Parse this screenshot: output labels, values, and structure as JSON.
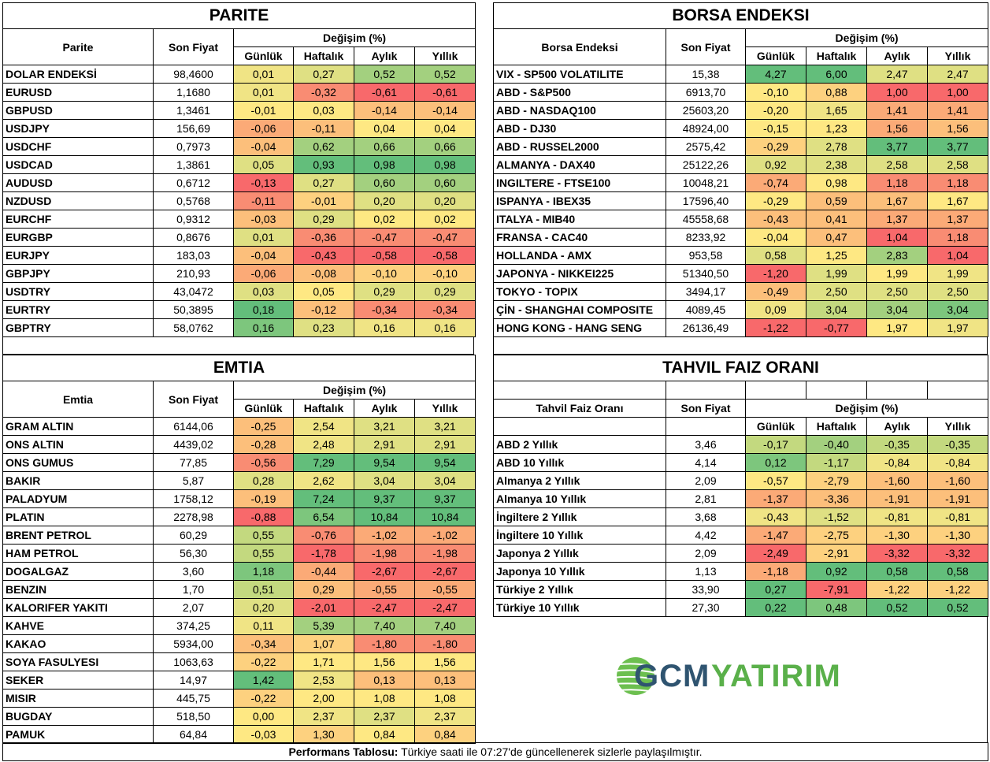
{
  "palette": {
    "G1": "#63be7b",
    "G2": "#7dc67d",
    "G3": "#a3d07f",
    "G4": "#c3d97f",
    "Y1": "#dfe083",
    "Y2": "#f0e485",
    "Y3": "#fee883",
    "O1": "#fdd17f",
    "O2": "#fcbf7b",
    "O3": "#fbaa77",
    "R1": "#f98c73",
    "R2": "#f8696b"
  },
  "columns": {
    "daily": "Günlük",
    "weekly": "Haftalık",
    "monthly": "Aylık",
    "yearly": "Yıllık",
    "change": "Değişim (%)",
    "price": "Son Fiyat"
  },
  "parite": {
    "title": "PARITE",
    "name_header": "Parite",
    "rows": [
      {
        "name": "DOLAR ENDEKSİ",
        "price": "98,4600",
        "v": [
          "0,01",
          "0,27",
          "0,52",
          "0,52"
        ],
        "c": [
          "Y2",
          "Y1",
          "G3",
          "G3"
        ]
      },
      {
        "name": "EURUSD",
        "price": "1,1680",
        "v": [
          "0,01",
          "-0,32",
          "-0,61",
          "-0,61"
        ],
        "c": [
          "Y2",
          "R1",
          "R2",
          "R2"
        ]
      },
      {
        "name": "GBPUSD",
        "price": "1,3461",
        "v": [
          "-0,01",
          "0,03",
          "-0,14",
          "-0,14"
        ],
        "c": [
          "Y3",
          "Y3",
          "O2",
          "O2"
        ]
      },
      {
        "name": "USDJPY",
        "price": "156,69",
        "v": [
          "-0,06",
          "-0,11",
          "0,04",
          "0,04"
        ],
        "c": [
          "O3",
          "O2",
          "Y3",
          "Y3"
        ]
      },
      {
        "name": "USDCHF",
        "price": "0,7973",
        "v": [
          "-0,04",
          "0,62",
          "0,66",
          "0,66"
        ],
        "c": [
          "O2",
          "G3",
          "G3",
          "G3"
        ]
      },
      {
        "name": "USDCAD",
        "price": "1,3861",
        "v": [
          "0,05",
          "0,93",
          "0,98",
          "0,98"
        ],
        "c": [
          "Y1",
          "G1",
          "G1",
          "G1"
        ]
      },
      {
        "name": "AUDUSD",
        "price": "0,6712",
        "v": [
          "-0,13",
          "0,27",
          "0,60",
          "0,60"
        ],
        "c": [
          "R2",
          "Y1",
          "G3",
          "G3"
        ]
      },
      {
        "name": "NZDUSD",
        "price": "0,5768",
        "v": [
          "-0,11",
          "-0,01",
          "0,20",
          "0,20"
        ],
        "c": [
          "R1",
          "O1",
          "Y1",
          "Y1"
        ]
      },
      {
        "name": "EURCHF",
        "price": "0,9312",
        "v": [
          "-0,03",
          "0,29",
          "0,02",
          "0,02"
        ],
        "c": [
          "O2",
          "Y1",
          "Y3",
          "Y3"
        ]
      },
      {
        "name": "EURGBP",
        "price": "0,8676",
        "v": [
          "0,01",
          "-0,36",
          "-0,47",
          "-0,47"
        ],
        "c": [
          "Y1",
          "R1",
          "R1",
          "R1"
        ]
      },
      {
        "name": "EURJPY",
        "price": "183,03",
        "v": [
          "-0,04",
          "-0,43",
          "-0,58",
          "-0,58"
        ],
        "c": [
          "O2",
          "R2",
          "R2",
          "R2"
        ]
      },
      {
        "name": "GBPJPY",
        "price": "210,93",
        "v": [
          "-0,06",
          "-0,08",
          "-0,10",
          "-0,10"
        ],
        "c": [
          "O3",
          "O2",
          "O1",
          "O1"
        ]
      },
      {
        "name": "USDTRY",
        "price": "43,0472",
        "v": [
          "0,03",
          "0,05",
          "0,29",
          "0,29"
        ],
        "c": [
          "Y1",
          "Y3",
          "Y1",
          "Y1"
        ]
      },
      {
        "name": "EURTRY",
        "price": "50,3895",
        "v": [
          "0,18",
          "-0,12",
          "-0,34",
          "-0,34"
        ],
        "c": [
          "G1",
          "O2",
          "R1",
          "R1"
        ]
      },
      {
        "name": "GBPTRY",
        "price": "58,0762",
        "v": [
          "0,16",
          "0,23",
          "0,16",
          "0,16"
        ],
        "c": [
          "G2",
          "Y1",
          "Y2",
          "Y2"
        ]
      }
    ]
  },
  "borsa": {
    "title": "BORSA ENDEKSI",
    "name_header": "Borsa Endeksi",
    "rows": [
      {
        "name": "VIX  - SP500 VOLATILITE",
        "price": "15,38",
        "v": [
          "4,27",
          "6,00",
          "2,47",
          "2,47"
        ],
        "c": [
          "G1",
          "G1",
          "Y1",
          "Y1"
        ]
      },
      {
        "name": "ABD - S&P500",
        "price": "6913,70",
        "v": [
          "-0,10",
          "0,88",
          "1,00",
          "1,00"
        ],
        "c": [
          "Y3",
          "O1",
          "R2",
          "R2"
        ]
      },
      {
        "name": "ABD - NASDAQ100",
        "price": "25603,20",
        "v": [
          "-0,20",
          "1,65",
          "1,41",
          "1,41"
        ],
        "c": [
          "Y3",
          "Y2",
          "O3",
          "O3"
        ]
      },
      {
        "name": "ABD - DJ30",
        "price": "48924,00",
        "v": [
          "-0,15",
          "1,23",
          "1,56",
          "1,56"
        ],
        "c": [
          "Y3",
          "Y3",
          "O3",
          "O2"
        ]
      },
      {
        "name": "ABD - RUSSEL2000",
        "price": "2575,42",
        "v": [
          "-0,29",
          "2,78",
          "3,77",
          "3,77"
        ],
        "c": [
          "O1",
          "Y1",
          "G1",
          "G1"
        ]
      },
      {
        "name": "ALMANYA - DAX40",
        "price": "25122,26",
        "v": [
          "0,92",
          "2,38",
          "2,58",
          "2,58"
        ],
        "c": [
          "Y1",
          "Y1",
          "Y1",
          "Y1"
        ]
      },
      {
        "name": "INGILTERE - FTSE100",
        "price": "10048,21",
        "v": [
          "-0,74",
          "0,98",
          "1,18",
          "1,18"
        ],
        "c": [
          "O3",
          "Y3",
          "R1",
          "R1"
        ]
      },
      {
        "name": "ISPANYA - IBEX35",
        "price": "17596,40",
        "v": [
          "-0,29",
          "0,59",
          "1,67",
          "1,67"
        ],
        "c": [
          "Y3",
          "O2",
          "O2",
          "Y3"
        ]
      },
      {
        "name": "ITALYA - MIB40",
        "price": "45558,68",
        "v": [
          "-0,43",
          "0,41",
          "1,37",
          "1,37"
        ],
        "c": [
          "O2",
          "O2",
          "O3",
          "O3"
        ]
      },
      {
        "name": "FRANSA - CAC40",
        "price": "8233,92",
        "v": [
          "-0,04",
          "0,47",
          "1,04",
          "1,18"
        ],
        "c": [
          "Y3",
          "O2",
          "R2",
          "R1"
        ]
      },
      {
        "name": "HOLLANDA - AMX",
        "price": "953,58",
        "v": [
          "0,58",
          "1,25",
          "2,83",
          "1,04"
        ],
        "c": [
          "Y1",
          "Y3",
          "G3",
          "R2"
        ]
      },
      {
        "name": "JAPONYA - NIKKEI225",
        "price": "51340,50",
        "v": [
          "-1,20",
          "1,99",
          "1,99",
          "1,99"
        ],
        "c": [
          "R2",
          "Y1",
          "Y3",
          "Y2"
        ]
      },
      {
        "name": "TOKYO - TOPIX",
        "price": "3494,17",
        "v": [
          "-0,49",
          "2,50",
          "2,50",
          "2,50"
        ],
        "c": [
          "O2",
          "Y1",
          "Y1",
          "Y1"
        ]
      },
      {
        "name": "ÇİN - SHANGHAI COMPOSITE",
        "price": "4089,45",
        "v": [
          "0,09",
          "3,04",
          "3,04",
          "3,04"
        ],
        "c": [
          "Y2",
          "G4",
          "G3",
          "G2"
        ]
      },
      {
        "name": "HONG KONG - HANG SENG",
        "price": "26136,49",
        "v": [
          "-1,22",
          "-0,77",
          "1,97",
          "1,97"
        ],
        "c": [
          "R2",
          "R2",
          "Y3",
          "Y2"
        ]
      }
    ]
  },
  "emtia": {
    "title": "EMTIA",
    "name_header": "Emtia",
    "rows": [
      {
        "name": "GRAM ALTIN",
        "price": "6144,06",
        "v": [
          "-0,25",
          "2,54",
          "3,21",
          "3,21"
        ],
        "c": [
          "O2",
          "Y2",
          "Y1",
          "Y1"
        ]
      },
      {
        "name": "ONS ALTIN",
        "price": "4439,02",
        "v": [
          "-0,28",
          "2,48",
          "2,91",
          "2,91"
        ],
        "c": [
          "O2",
          "Y2",
          "Y1",
          "Y1"
        ]
      },
      {
        "name": "ONS GUMUS",
        "price": "77,85",
        "v": [
          "-0,56",
          "7,29",
          "9,54",
          "9,54"
        ],
        "c": [
          "R1",
          "G1",
          "G1",
          "G1"
        ]
      },
      {
        "name": "BAKIR",
        "price": "5,87",
        "v": [
          "0,28",
          "2,62",
          "3,04",
          "3,04"
        ],
        "c": [
          "Y1",
          "Y2",
          "Y1",
          "Y1"
        ]
      },
      {
        "name": "PALADYUM",
        "price": "1758,12",
        "v": [
          "-0,19",
          "7,24",
          "9,37",
          "9,37"
        ],
        "c": [
          "O2",
          "G1",
          "G1",
          "G1"
        ]
      },
      {
        "name": "PLATIN",
        "price": "2278,98",
        "v": [
          "-0,88",
          "6,54",
          "10,84",
          "10,84"
        ],
        "c": [
          "R2",
          "G2",
          "G1",
          "G1"
        ]
      },
      {
        "name": "BRENT PETROL",
        "price": "60,29",
        "v": [
          "0,55",
          "-0,76",
          "-1,02",
          "-1,02"
        ],
        "c": [
          "G4",
          "R1",
          "O3",
          "O3"
        ]
      },
      {
        "name": "HAM PETROL",
        "price": "56,30",
        "v": [
          "0,55",
          "-1,78",
          "-1,98",
          "-1,98"
        ],
        "c": [
          "G4",
          "R2",
          "R1",
          "R1"
        ]
      },
      {
        "name": "DOGALGAZ",
        "price": "3,60",
        "v": [
          "1,18",
          "-0,44",
          "-2,67",
          "-2,67"
        ],
        "c": [
          "G2",
          "O3",
          "R2",
          "R2"
        ]
      },
      {
        "name": "BENZIN",
        "price": "1,70",
        "v": [
          "0,51",
          "0,29",
          "-0,55",
          "-0,55"
        ],
        "c": [
          "G4",
          "O2",
          "O3",
          "O3"
        ]
      },
      {
        "name": "KALORIFER YAKITI",
        "price": "2,07",
        "v": [
          "0,20",
          "-2,01",
          "-2,47",
          "-2,47"
        ],
        "c": [
          "Y1",
          "R2",
          "R2",
          "R2"
        ]
      },
      {
        "name": "KAHVE",
        "price": "374,25",
        "v": [
          "0,11",
          "5,39",
          "7,40",
          "7,40"
        ],
        "c": [
          "Y2",
          "G3",
          "G3",
          "G3"
        ]
      },
      {
        "name": "KAKAO",
        "price": "5934,00",
        "v": [
          "-0,34",
          "1,07",
          "-1,80",
          "-1,80"
        ],
        "c": [
          "O2",
          "O1",
          "R1",
          "R1"
        ]
      },
      {
        "name": "SOYA FASULYESI",
        "price": "1063,63",
        "v": [
          "-0,22",
          "1,71",
          "1,56",
          "1,56"
        ],
        "c": [
          "O1",
          "Y3",
          "Y3",
          "Y3"
        ]
      },
      {
        "name": "SEKER",
        "price": "14,97",
        "v": [
          "1,42",
          "2,53",
          "0,13",
          "0,13"
        ],
        "c": [
          "G1",
          "Y2",
          "O2",
          "O2"
        ]
      },
      {
        "name": "MISIR",
        "price": "445,75",
        "v": [
          "-0,22",
          "2,00",
          "1,08",
          "1,08"
        ],
        "c": [
          "O1",
          "Y3",
          "Y3",
          "Y3"
        ]
      },
      {
        "name": "BUGDAY",
        "price": "518,50",
        "v": [
          "0,00",
          "2,37",
          "2,37",
          "2,37"
        ],
        "c": [
          "Y3",
          "Y2",
          "Y1",
          "Y2"
        ]
      },
      {
        "name": "PAMUK",
        "price": "64,84",
        "v": [
          "-0,03",
          "1,30",
          "0,84",
          "0,84"
        ],
        "c": [
          "Y3",
          "O1",
          "Y3",
          "O1"
        ]
      }
    ]
  },
  "tahvil": {
    "title": "TAHVIL FAIZ ORANI",
    "name_header": "Tahvil Faiz Oranı",
    "rows": [
      {
        "name": "ABD 2 Yıllık",
        "price": "3,46",
        "v": [
          "-0,17",
          "-0,40",
          "-0,35",
          "-0,35"
        ],
        "c": [
          "G4",
          "G3",
          "G4",
          "G4"
        ]
      },
      {
        "name": "ABD 10 Yıllık",
        "price": "4,14",
        "v": [
          "0,12",
          "-1,17",
          "-0,84",
          "-0,84"
        ],
        "c": [
          "G2",
          "G4",
          "Y2",
          "Y2"
        ]
      },
      {
        "name": "Almanya 2 Yıllık",
        "price": "2,09",
        "v": [
          "-0,57",
          "-2,79",
          "-1,60",
          "-1,60"
        ],
        "c": [
          "Y3",
          "O1",
          "O2",
          "O2"
        ]
      },
      {
        "name": "Almanya 10 Yıllık",
        "price": "2,81",
        "v": [
          "-1,37",
          "-3,36",
          "-1,91",
          "-1,91"
        ],
        "c": [
          "O3",
          "O2",
          "O2",
          "O2"
        ]
      },
      {
        "name": "İngiltere 2 Yıllık",
        "price": "3,68",
        "v": [
          "-0,43",
          "-1,52",
          "-0,81",
          "-0,81"
        ],
        "c": [
          "Y2",
          "Y1",
          "Y2",
          "Y2"
        ]
      },
      {
        "name": "İngiltere 10 Yıllık",
        "price": "4,42",
        "v": [
          "-1,47",
          "-2,75",
          "-1,30",
          "-1,30"
        ],
        "c": [
          "O3",
          "O1",
          "O1",
          "O1"
        ]
      },
      {
        "name": "Japonya 2 Yıllık",
        "price": "2,09",
        "v": [
          "-2,49",
          "-2,91",
          "-3,32",
          "-3,32"
        ],
        "c": [
          "R2",
          "O1",
          "R2",
          "R2"
        ]
      },
      {
        "name": "Japonya 10 Yıllık",
        "price": "1,13",
        "v": [
          "-1,18",
          "0,92",
          "0,58",
          "0,58"
        ],
        "c": [
          "O3",
          "G1",
          "G1",
          "G1"
        ]
      },
      {
        "name": "Türkiye 2 Yıllık",
        "price": "33,90",
        "v": [
          "0,27",
          "-7,91",
          "-1,22",
          "-1,22"
        ],
        "c": [
          "G1",
          "R2",
          "O1",
          "O1"
        ]
      },
      {
        "name": "Türkiye 10 Yıllık",
        "price": "27,30",
        "v": [
          "0,22",
          "0,48",
          "0,52",
          "0,52"
        ],
        "c": [
          "G1",
          "G2",
          "G1",
          "G1"
        ]
      }
    ]
  },
  "logo": {
    "part1": "GCM",
    "part2": "YATIRIM",
    "color1": "#2f5470",
    "color2": "#5ab04a"
  },
  "footer": {
    "label": "Performans Tablosu:",
    "text": " Türkiye saati ile 07:27'de güncellenerek sizlerle paylaşılmıştır."
  }
}
